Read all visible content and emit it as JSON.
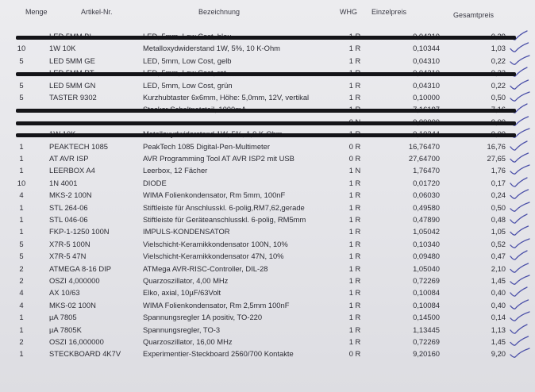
{
  "headers": {
    "menge": "Menge",
    "artikel": "Artikel-Nr.",
    "bezeichnung": "Bezeichnung",
    "whg": "WHG",
    "einzelpreis": "Einzelpreis",
    "gesamtpreis": "Gesamtpreis"
  },
  "rows": [
    {
      "menge": "",
      "artikel": "LED 5MM BL",
      "bezeichnung": "LED, 5mm, Low Cost, blau",
      "whg": "1 R",
      "einzelpreis": "0,04310",
      "gesamtpreis": "0,39",
      "struck": true,
      "checked": true
    },
    {
      "menge": "10",
      "artikel": "1W 10K",
      "bezeichnung": "Metalloxydwiderstand 1W, 5%, 10 K-Ohm",
      "whg": "1 R",
      "einzelpreis": "0,10344",
      "gesamtpreis": "1,03",
      "struck": false,
      "checked": true
    },
    {
      "menge": "5",
      "artikel": "LED 5MM GE",
      "bezeichnung": "LED, 5mm, Low Cost, gelb",
      "whg": "1 R",
      "einzelpreis": "0,04310",
      "gesamtpreis": "0,22",
      "struck": false,
      "checked": true
    },
    {
      "menge": "",
      "artikel": "LED 5MM RT",
      "bezeichnung": "LED, 5mm, Low Cost, rot",
      "whg": "1 R",
      "einzelpreis": "0,04310",
      "gesamtpreis": "0,22",
      "struck": true,
      "checked": true
    },
    {
      "menge": "5",
      "artikel": "LED 5MM GN",
      "bezeichnung": "LED, 5mm, Low Cost, grün",
      "whg": "1 R",
      "einzelpreis": "0,04310",
      "gesamtpreis": "0,22",
      "struck": false,
      "checked": true
    },
    {
      "menge": "5",
      "artikel": "TASTER 9302",
      "bezeichnung": "Kurzhubtaster 6x6mm, Höhe: 5,0mm, 12V, vertikal",
      "whg": "1 R",
      "einzelpreis": "0,10000",
      "gesamtpreis": "0,50",
      "struck": false,
      "checked": true
    },
    {
      "menge": "",
      "artikel": "",
      "bezeichnung": "Stecker Schaltnetzteil, 1000mA",
      "whg": "1 R",
      "einzelpreis": "7,16197",
      "gesamtpreis": "7,16",
      "struck": true,
      "checked": true
    },
    {
      "menge": "",
      "artikel": "",
      "bezeichnung": "",
      "whg": "0 N",
      "einzelpreis": "0,00000",
      "gesamtpreis": "0,00",
      "struck": true,
      "checked": true
    },
    {
      "menge": "",
      "artikel": "1W 10K",
      "bezeichnung": "Metalloxydwiderstand 1W, 5%, 1,0 K-Ohm",
      "whg": "1 R",
      "einzelpreis": "0,10344",
      "gesamtpreis": "0,00",
      "struck": true,
      "checked": true
    },
    {
      "menge": "1",
      "artikel": "PEAKTECH 1085",
      "bezeichnung": "PeakTech 1085 Digital-Pen-Multimeter",
      "whg": "0 R",
      "einzelpreis": "16,76470",
      "gesamtpreis": "16,76",
      "struck": false,
      "checked": true
    },
    {
      "menge": "1",
      "artikel": "AT AVR ISP",
      "bezeichnung": "AVR Programming Tool AT AVR ISP2 mit USB",
      "whg": "0 R",
      "einzelpreis": "27,64700",
      "gesamtpreis": "27,65",
      "struck": false,
      "checked": true
    },
    {
      "menge": "1",
      "artikel": "LEERBOX A4",
      "bezeichnung": "Leerbox, 12 Fächer",
      "whg": "1 N",
      "einzelpreis": "1,76470",
      "gesamtpreis": "1,76",
      "struck": false,
      "checked": true
    },
    {
      "menge": "10",
      "artikel": "1N 4001",
      "bezeichnung": "DIODE",
      "whg": "1 R",
      "einzelpreis": "0,01720",
      "gesamtpreis": "0,17",
      "struck": false,
      "checked": true
    },
    {
      "menge": "4",
      "artikel": "MKS-2 100N",
      "bezeichnung": "WIMA Folienkondensator, Rm 5mm, 100nF",
      "whg": "1 R",
      "einzelpreis": "0,06030",
      "gesamtpreis": "0,24",
      "struck": false,
      "checked": true
    },
    {
      "menge": "1",
      "artikel": "STL 264-06",
      "bezeichnung": "Stiftleiste für Anschlusskl. 6-polig,RM7,62,gerade",
      "whg": "1 R",
      "einzelpreis": "0,49580",
      "gesamtpreis": "0,50",
      "struck": false,
      "checked": true
    },
    {
      "menge": "1",
      "artikel": "STL 046-06",
      "bezeichnung": "Stiftleiste für Geräteanschlusskl. 6-polig, RM5mm",
      "whg": "1 R",
      "einzelpreis": "0,47890",
      "gesamtpreis": "0,48",
      "struck": false,
      "checked": true
    },
    {
      "menge": "1",
      "artikel": "FKP-1-1250 100N",
      "bezeichnung": "IMPULS-KONDENSATOR",
      "whg": "1 R",
      "einzelpreis": "1,05042",
      "gesamtpreis": "1,05",
      "struck": false,
      "checked": true
    },
    {
      "menge": "5",
      "artikel": "X7R-5 100N",
      "bezeichnung": "Vielschicht-Keramikkondensator 100N, 10%",
      "whg": "1 R",
      "einzelpreis": "0,10340",
      "gesamtpreis": "0,52",
      "struck": false,
      "checked": true
    },
    {
      "menge": "5",
      "artikel": "X7R-5 47N",
      "bezeichnung": "Vielschicht-Keramikkondensator 47N, 10%",
      "whg": "1 R",
      "einzelpreis": "0,09480",
      "gesamtpreis": "0,47",
      "struck": false,
      "checked": true
    },
    {
      "menge": "2",
      "artikel": "ATMEGA 8-16 DIP",
      "bezeichnung": "ATMega AVR-RISC-Controller, DIL-28",
      "whg": "1 R",
      "einzelpreis": "1,05040",
      "gesamtpreis": "2,10",
      "struck": false,
      "checked": true
    },
    {
      "menge": "2",
      "artikel": "OSZI 4,000000",
      "bezeichnung": "Quarzoszillator,   4,00 MHz",
      "whg": "1 R",
      "einzelpreis": "0,72269",
      "gesamtpreis": "1,45",
      "struck": false,
      "checked": true
    },
    {
      "menge": "4",
      "artikel": "AX 10/63",
      "bezeichnung": "Elko, axial, 10µF/63Volt",
      "whg": "1 R",
      "einzelpreis": "0,10084",
      "gesamtpreis": "0,40",
      "struck": false,
      "checked": true
    },
    {
      "menge": "4",
      "artikel": "MKS-02 100N",
      "bezeichnung": "WIMA Folienkondensator, Rm 2,5mm 100nF",
      "whg": "1 R",
      "einzelpreis": "0,10084",
      "gesamtpreis": "0,40",
      "struck": false,
      "checked": true
    },
    {
      "menge": "1",
      "artikel": "µA 7805",
      "bezeichnung": "Spannungsregler 1A positiv, TO-220",
      "whg": "1 R",
      "einzelpreis": "0,14500",
      "gesamtpreis": "0,14",
      "struck": false,
      "checked": true
    },
    {
      "menge": "1",
      "artikel": "µA 7805K",
      "bezeichnung": "Spannungsregler, TO-3",
      "whg": "1 R",
      "einzelpreis": "1,13445",
      "gesamtpreis": "1,13",
      "struck": false,
      "checked": true
    },
    {
      "menge": "2",
      "artikel": "OSZI 16,000000",
      "bezeichnung": "Quarzoszillator, 16,00 MHz",
      "whg": "1 R",
      "einzelpreis": "0,72269",
      "gesamtpreis": "1,45",
      "struck": false,
      "checked": true
    },
    {
      "menge": "1",
      "artikel": "STECKBOARD 4K7V",
      "bezeichnung": "Experimentier-Steckboard 2560/700 Kontakte",
      "whg": "0 R",
      "einzelpreis": "9,20160",
      "gesamtpreis": "9,20",
      "struck": false,
      "checked": true
    }
  ]
}
